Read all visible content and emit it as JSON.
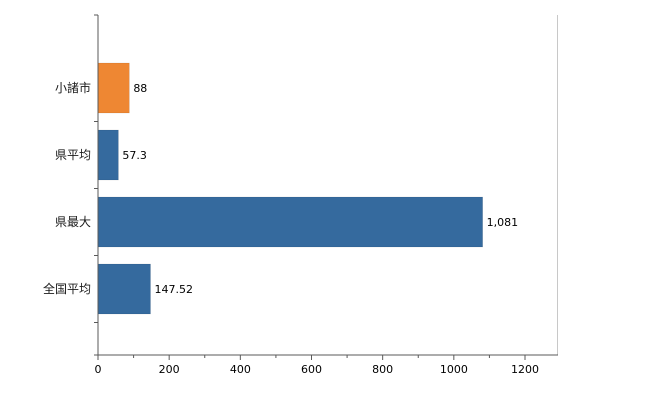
{
  "chart_data": {
    "type": "bar",
    "orientation": "horizontal",
    "title": "",
    "xlabel": "",
    "ylabel": "",
    "grid": false,
    "legend": false,
    "categories": [
      "小諸市",
      "県平均",
      "県最大",
      "全国平均"
    ],
    "values": [
      88,
      57.3,
      1081,
      147.52
    ],
    "value_labels": [
      "88",
      "57.3",
      "1,081",
      "147.52"
    ],
    "bar_colors": [
      "#ee8733",
      "#356a9e",
      "#356a9e",
      "#356a9e"
    ],
    "x_axis": {
      "min": 0,
      "max": 1200,
      "major_ticks": [
        0,
        200,
        400,
        600,
        800,
        1000,
        1200
      ],
      "tick_labels": [
        "0",
        "200",
        "400",
        "600",
        "800",
        "1000",
        "1200"
      ],
      "minor_tick_interval": 100
    },
    "colors": {
      "axis": "#595959",
      "tick_label": "#000000",
      "value_label": "#000000",
      "category_label": "#1a1a1a",
      "plot_border": "#c8c8c8",
      "background": "#ffffff"
    }
  }
}
